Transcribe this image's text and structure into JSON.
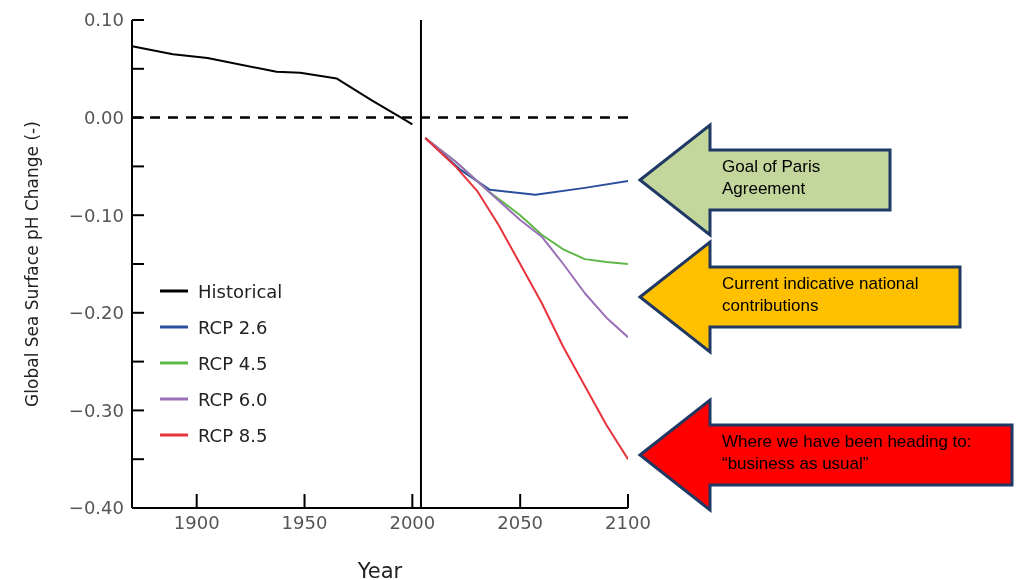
{
  "chart_data": {
    "type": "line",
    "xlabel": "Year",
    "ylabel": "Global Sea Surface pH Change (-)",
    "xlim": [
      1870,
      2100
    ],
    "xticks": [
      1900,
      1950,
      2000,
      2050,
      2100
    ],
    "ylim": [
      -0.4,
      0.1
    ],
    "yticks": [
      {
        "value": 0.1,
        "label": "0.10"
      },
      {
        "value": 0.05,
        "label": null
      },
      {
        "value": 0,
        "label": "0.00"
      },
      {
        "value": -0.05,
        "label": null
      },
      {
        "value": -0.1,
        "label": "−0.10"
      },
      {
        "value": -0.15,
        "label": null
      },
      {
        "value": -0.2,
        "label": "−0.20"
      },
      {
        "value": -0.25,
        "label": null
      },
      {
        "value": -0.3,
        "label": "−0.30"
      },
      {
        "value": -0.35,
        "label": null
      },
      {
        "value": -0.4,
        "label": "−0.40"
      }
    ],
    "legend": "left",
    "marker": "none",
    "ref_lines": [
      {
        "axis": "y",
        "value": 0,
        "line_style": "dashed",
        "color": "#000000"
      },
      {
        "axis": "x",
        "value": 2004,
        "line_style": "solid",
        "color": "#000000"
      }
    ],
    "series": [
      {
        "name": "Historical",
        "color": "#000000",
        "x": [
          1870,
          1889,
          1905,
          1937,
          1948,
          1965,
          1981,
          1994,
          2000
        ],
        "values": [
          0.073,
          0.065,
          0.061,
          0.047,
          0.046,
          0.04,
          0.018,
          0.001,
          -0.007
        ]
      },
      {
        "name": "RCP 2.6",
        "color": "#2b4f9e",
        "x": [
          2006,
          2022,
          2036,
          2057,
          2080,
          2100
        ],
        "values": [
          -0.021,
          -0.053,
          -0.074,
          -0.079,
          -0.072,
          -0.065
        ]
      },
      {
        "name": "RCP 4.5",
        "color": "#5fb847",
        "x": [
          2006,
          2020,
          2035,
          2050,
          2060,
          2070,
          2080,
          2090,
          2100
        ],
        "values": [
          -0.021,
          -0.045,
          -0.075,
          -0.1,
          -0.12,
          -0.135,
          -0.145,
          -0.148,
          -0.15
        ]
      },
      {
        "name": "RCP 6.0",
        "color": "#9b6fb8",
        "x": [
          2006,
          2020,
          2035,
          2050,
          2060,
          2070,
          2080,
          2090,
          2100
        ],
        "values": [
          -0.021,
          -0.045,
          -0.075,
          -0.105,
          -0.122,
          -0.15,
          -0.18,
          -0.205,
          -0.225
        ]
      },
      {
        "name": "RCP 8.5",
        "color": "#e8323c",
        "x": [
          2006,
          2020,
          2030,
          2040,
          2050,
          2060,
          2070,
          2080,
          2090,
          2100
        ],
        "values": [
          -0.021,
          -0.05,
          -0.075,
          -0.11,
          -0.15,
          -0.19,
          -0.235,
          -0.275,
          -0.315,
          -0.35
        ]
      }
    ],
    "annotations": [
      "Goal of Paris Agreement",
      "Current indicative national contributions",
      "Where we have been heading to: “business as usual”"
    ]
  }
}
